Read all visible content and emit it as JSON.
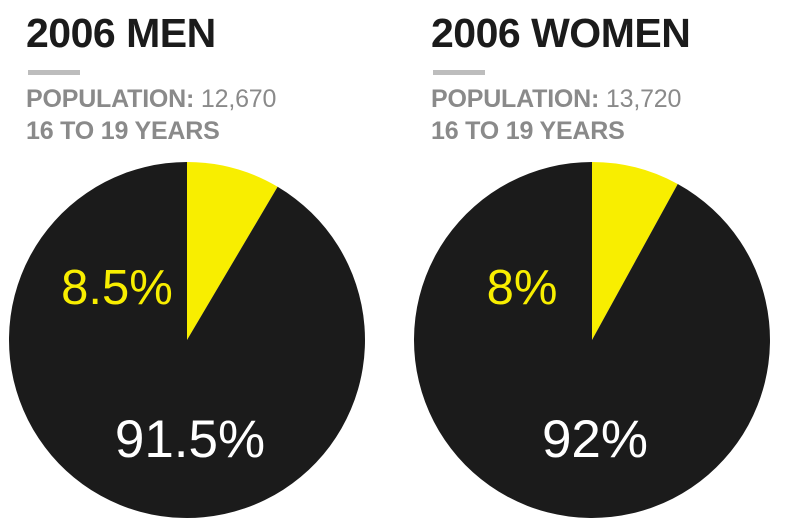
{
  "colors": {
    "dark": "#1b1b1b",
    "highlight": "#f8ee00",
    "rule": "#bdbdbd",
    "subtext": "#8a8a8a"
  },
  "chart_data": [
    {
      "type": "pie",
      "title": "2006 MEN",
      "population_label": "POPULATION:",
      "population": "12,670",
      "subtitle": "16 TO 19 YEARS",
      "slices": [
        {
          "label": "8.5%",
          "value": 8.5,
          "color": "#f8ee00",
          "label_color": "#f8ee00"
        },
        {
          "label": "91.5%",
          "value": 91.5,
          "color": "#1b1b1b",
          "label_color": "#ffffff"
        }
      ]
    },
    {
      "type": "pie",
      "title": "2006 WOMEN",
      "population_label": "POPULATION:",
      "population": "13,720",
      "subtitle": "16 TO 19 YEARS",
      "slices": [
        {
          "label": "8%",
          "value": 8,
          "color": "#f8ee00",
          "label_color": "#f8ee00"
        },
        {
          "label": "92%",
          "value": 92,
          "color": "#1b1b1b",
          "label_color": "#ffffff"
        }
      ]
    }
  ]
}
